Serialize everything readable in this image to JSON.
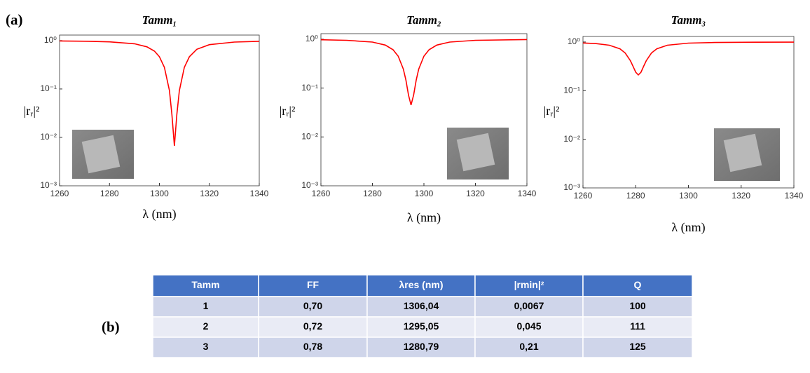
{
  "panel_a": "(a)",
  "panel_b": "(b)",
  "chart_data": [
    {
      "type": "line",
      "title": "Tamm₁",
      "x_label": "λ (nm)",
      "y_label": "|rᵣ|²",
      "log_y": true,
      "color": "#ff0000",
      "x": [
        1260,
        1270,
        1280,
        1290,
        1295,
        1298,
        1300,
        1302,
        1304,
        1305,
        1306,
        1307,
        1308,
        1310,
        1312,
        1315,
        1320,
        1330,
        1340
      ],
      "values": [
        0.981,
        0.969,
        0.942,
        0.859,
        0.743,
        0.605,
        0.464,
        0.28,
        0.093,
        0.03,
        0.0067,
        0.03,
        0.093,
        0.28,
        0.464,
        0.66,
        0.824,
        0.932,
        0.965
      ],
      "xlim": [
        1260,
        1340
      ],
      "xticks": [
        1260,
        1280,
        1300,
        1320,
        1340
      ],
      "ylim": [
        0.001,
        1.3
      ],
      "yticks": [
        {
          "value": 1,
          "label": "10⁰"
        },
        {
          "value": 0.1,
          "label": "10⁻¹"
        },
        {
          "value": 0.01,
          "label": "10⁻²"
        },
        {
          "value": 0.001,
          "label": "10⁻³"
        }
      ]
    },
    {
      "type": "line",
      "title": "Tamm₂",
      "x_label": "λ (nm)",
      "y_label": "|rᵣ|²",
      "log_y": true,
      "color": "#ff0000",
      "x": [
        1260,
        1270,
        1280,
        1285,
        1288,
        1290,
        1292,
        1293,
        1294,
        1295,
        1296,
        1297,
        1298,
        1300,
        1302,
        1305,
        1310,
        1320,
        1340
      ],
      "values": [
        0.974,
        0.951,
        0.875,
        0.758,
        0.609,
        0.45,
        0.245,
        0.146,
        0.072,
        0.045,
        0.072,
        0.146,
        0.245,
        0.45,
        0.609,
        0.758,
        0.875,
        0.951,
        0.984
      ],
      "xlim": [
        1260,
        1340
      ],
      "xticks": [
        1260,
        1280,
        1300,
        1320,
        1340
      ],
      "ylim": [
        0.001,
        1.3
      ],
      "yticks": [
        {
          "value": 1,
          "label": "10⁰"
        },
        {
          "value": 0.1,
          "label": "10⁻¹"
        },
        {
          "value": 0.01,
          "label": "10⁻²"
        },
        {
          "value": 0.001,
          "label": "10⁻³"
        }
      ]
    },
    {
      "type": "line",
      "title": "Tamm₃",
      "x_label": "λ (nm)",
      "y_label": "|rᵣ|²",
      "log_y": true,
      "color": "#ff0000",
      "x": [
        1260,
        1265,
        1270,
        1274,
        1276,
        1278,
        1279,
        1280,
        1281,
        1282,
        1283,
        1284,
        1286,
        1288,
        1292,
        1300,
        1310,
        1325,
        1340
      ],
      "values": [
        0.956,
        0.927,
        0.859,
        0.725,
        0.596,
        0.412,
        0.315,
        0.239,
        0.21,
        0.239,
        0.315,
        0.412,
        0.596,
        0.725,
        0.859,
        0.947,
        0.976,
        0.989,
        0.994
      ],
      "xlim": [
        1260,
        1340
      ],
      "xticks": [
        1260,
        1280,
        1300,
        1320,
        1340
      ],
      "ylim": [
        0.001,
        1.3
      ],
      "yticks": [
        {
          "value": 1,
          "label": "10⁰"
        },
        {
          "value": 0.1,
          "label": "10⁻¹"
        },
        {
          "value": 0.01,
          "label": "10⁻²"
        },
        {
          "value": 0.001,
          "label": "10⁻³"
        }
      ]
    }
  ],
  "table": {
    "header": [
      "Tamm",
      "FF",
      "λres (nm)",
      "|rmin|²",
      "Q"
    ],
    "rows": [
      [
        "1",
        "0,70",
        "1306,04",
        "0,0067",
        "100"
      ],
      [
        "2",
        "0,72",
        "1295,05",
        "0,045",
        "111"
      ],
      [
        "3",
        "0,78",
        "1280,79",
        "0,21",
        "125"
      ]
    ]
  }
}
